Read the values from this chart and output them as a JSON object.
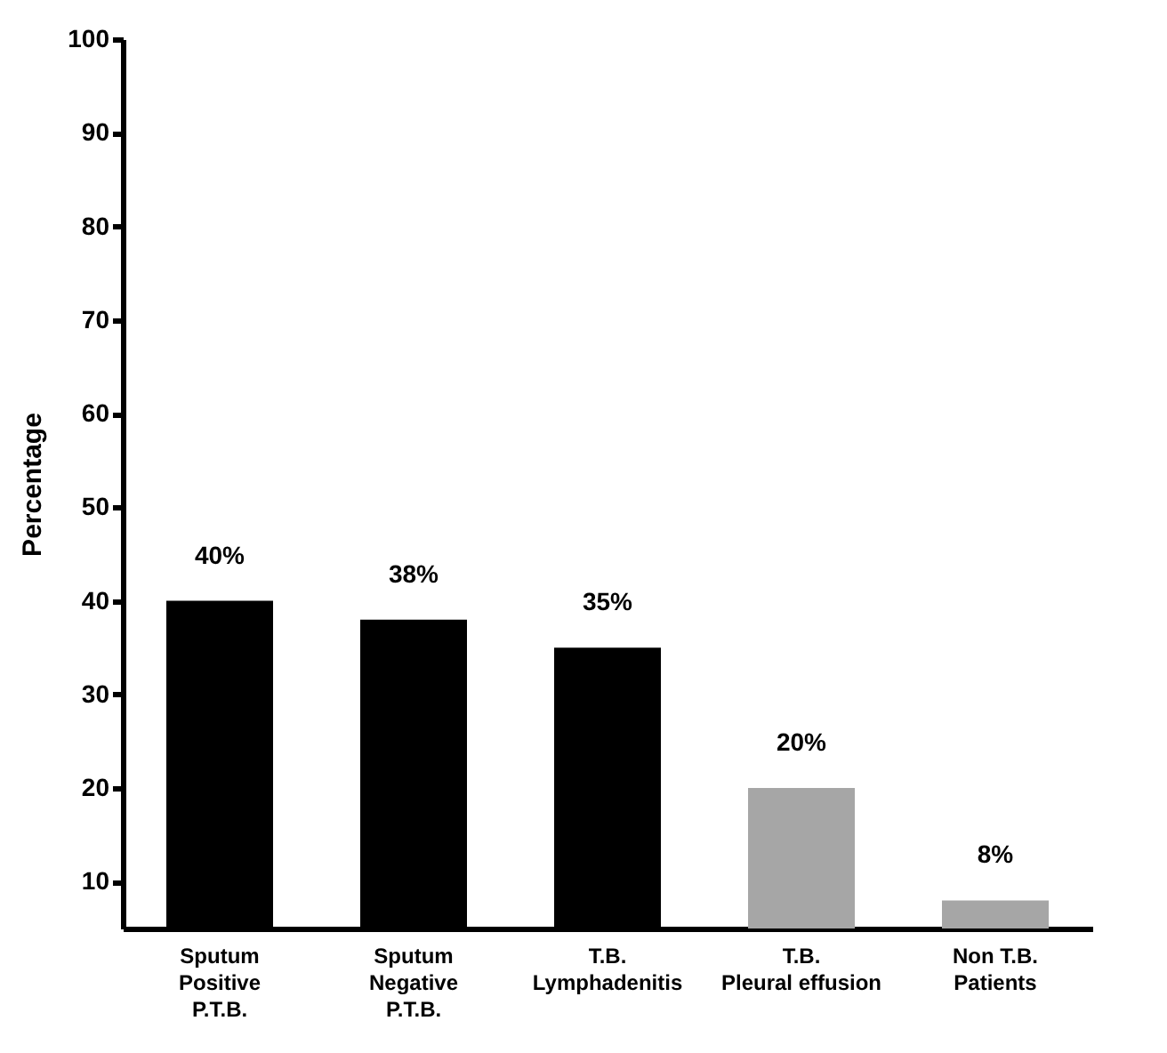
{
  "chart_data": {
    "type": "bar",
    "ylabel": "Percentage",
    "categories": [
      "Sputum\nPositive\nP.T.B.",
      "Sputum\nNegative\nP.T.B.",
      "T.B.\nLymphadenitis",
      "T.B.\nPleural effusion",
      "Non T.B.\nPatients"
    ],
    "values": [
      40,
      38,
      35,
      20,
      8
    ],
    "value_labels": [
      "40%",
      "38%",
      "35%",
      "20%",
      "8%"
    ],
    "colors": [
      "#000000",
      "#000000",
      "#000000",
      "#a6a6a6",
      "#a6a6a6"
    ],
    "ylim": [
      5,
      100
    ],
    "yticks": [
      10,
      20,
      30,
      40,
      50,
      60,
      70,
      80,
      90,
      100
    ],
    "grid": false
  }
}
